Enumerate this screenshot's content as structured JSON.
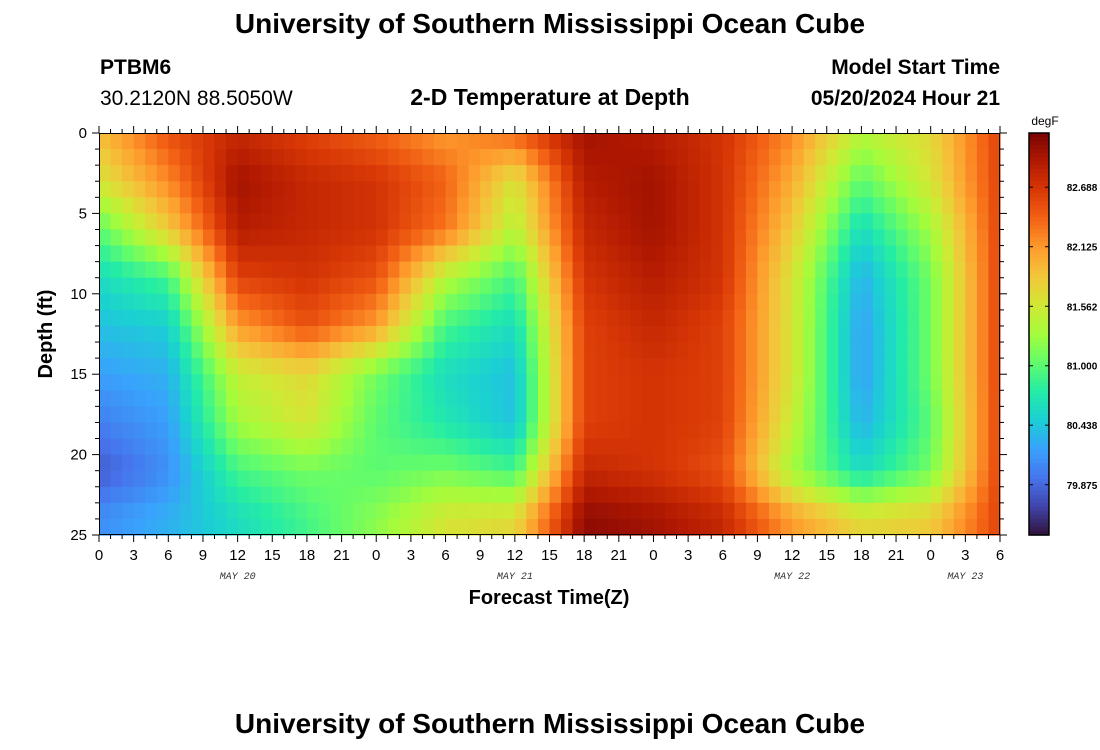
{
  "header": {
    "title": "University of Southern Mississippi Ocean Cube",
    "station_id": "PTBM6",
    "coords": "30.2120N  88.5050W",
    "plot_title": "2-D Temperature at Depth",
    "model_start_label": "Model Start Time",
    "model_start_value": "05/20/2024 Hour 21"
  },
  "footer": {
    "title": "University of Southern Mississippi Ocean Cube"
  },
  "colors": {
    "scale": [
      "#30123b",
      "#4145ab",
      "#4675ed",
      "#39a2fc",
      "#1bcfd4",
      "#24eca6",
      "#61fc6c",
      "#a4fc3b",
      "#d1e834",
      "#f3c63a",
      "#fe9b2d",
      "#f36315",
      "#d93806",
      "#b11901",
      "#7a0403"
    ]
  },
  "chart_data": {
    "type": "heatmap",
    "title": "2-D Temperature at Depth",
    "xlabel": "Forecast Time(Z)",
    "ylabel": "Depth (ft)",
    "x_tick_labels": [
      "0",
      "3",
      "6",
      "9",
      "12",
      "15",
      "18",
      "21",
      "0",
      "3",
      "6",
      "9",
      "12",
      "15",
      "18",
      "21",
      "0",
      "3",
      "6",
      "9",
      "12",
      "15",
      "18",
      "21",
      "0",
      "3",
      "6"
    ],
    "date_labels": [
      {
        "label": "MAY 20",
        "hour": 12
      },
      {
        "label": "MAY 21",
        "hour": 36
      },
      {
        "label": "MAY 22",
        "hour": 60
      },
      {
        "label": "MAY 23",
        "hour": 75
      }
    ],
    "x_range_hours": [
      0,
      78
    ],
    "y_ticks": [
      0,
      5,
      10,
      15,
      20,
      25
    ],
    "ylim": [
      0,
      25
    ],
    "colorbar": {
      "unit": "degF",
      "tick_labels": [
        "82.688",
        "82.125",
        "81.562",
        "81.000",
        "80.438",
        "79.875"
      ],
      "tick_values": [
        82.688,
        82.125,
        81.562,
        81.0,
        80.438,
        79.875
      ],
      "range": [
        79.4,
        83.2
      ]
    },
    "depths_ft": [
      0,
      3,
      6,
      9,
      12,
      15,
      18,
      21,
      24
    ],
    "hours": [
      0,
      6,
      12,
      18,
      24,
      30,
      36,
      42,
      48,
      54,
      60,
      66,
      72,
      78
    ],
    "values": [
      [
        81.9,
        82.5,
        82.8,
        82.6,
        82.4,
        82.1,
        82.4,
        83.0,
        82.9,
        82.7,
        82.2,
        81.4,
        81.7,
        82.6
      ],
      [
        81.6,
        82.2,
        83.0,
        82.8,
        82.7,
        82.4,
        81.6,
        82.9,
        83.0,
        82.7,
        82.0,
        81.0,
        81.6,
        82.6
      ],
      [
        81.0,
        81.8,
        82.9,
        82.8,
        82.7,
        82.3,
        81.4,
        82.8,
        83.0,
        82.7,
        81.8,
        80.6,
        81.3,
        82.6
      ],
      [
        80.6,
        80.9,
        82.6,
        82.7,
        82.5,
        81.4,
        80.9,
        82.7,
        82.9,
        82.7,
        81.6,
        80.3,
        81.1,
        82.6
      ],
      [
        80.4,
        80.5,
        82.1,
        82.5,
        82.1,
        80.9,
        80.6,
        82.6,
        82.8,
        82.6,
        81.6,
        80.2,
        81.1,
        82.6
      ],
      [
        80.2,
        80.3,
        81.5,
        81.7,
        81.1,
        80.6,
        80.4,
        82.6,
        82.7,
        82.6,
        81.6,
        80.2,
        81.1,
        82.6
      ],
      [
        80.0,
        80.2,
        81.3,
        81.6,
        81.0,
        80.7,
        80.4,
        82.6,
        82.7,
        82.6,
        81.5,
        80.3,
        81.0,
        82.6
      ],
      [
        79.8,
        80.1,
        80.9,
        81.1,
        81.0,
        81.1,
        80.9,
        82.8,
        82.7,
        82.5,
        81.3,
        80.6,
        81.1,
        82.6
      ],
      [
        80.1,
        80.3,
        80.6,
        80.9,
        81.2,
        81.6,
        81.7,
        83.1,
        83.0,
        82.8,
        82.1,
        81.7,
        81.8,
        82.6
      ]
    ]
  }
}
